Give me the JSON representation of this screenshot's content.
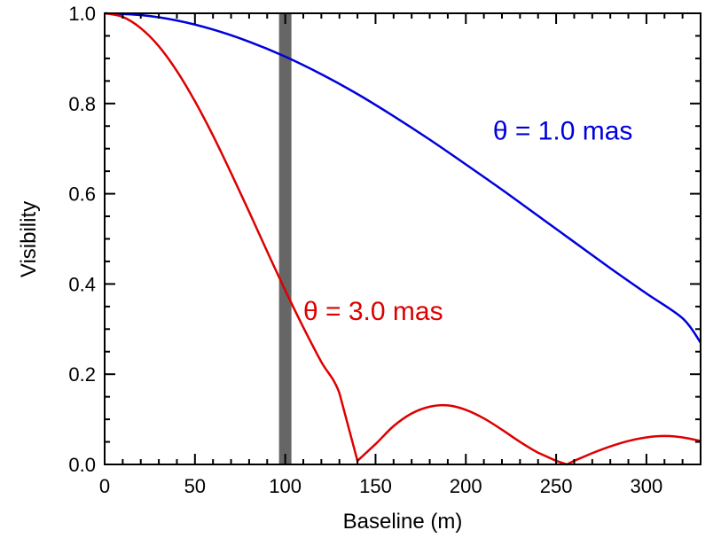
{
  "chart_data": {
    "type": "line",
    "xlabel": "Baseline (m)",
    "ylabel": "Visibility",
    "xlim": [
      0,
      330
    ],
    "ylim": [
      0,
      1.0
    ],
    "xticks": [
      0,
      50,
      100,
      150,
      200,
      250,
      300
    ],
    "xtick_labels": [
      "0",
      "50",
      "100",
      "150",
      "200",
      "250",
      "300"
    ],
    "yticks": [
      0.0,
      0.2,
      0.4,
      0.6,
      0.8,
      1.0
    ],
    "ytick_labels": [
      "0.0",
      "0.2",
      "0.4",
      "0.6",
      "0.8",
      "1.0"
    ],
    "grid": false,
    "marker_band": {
      "x": 100,
      "color": "#666666"
    },
    "series": [
      {
        "name": "θ = 1.0 mas",
        "color": "#0000dd",
        "x": [
          0,
          20,
          40,
          60,
          80,
          100,
          120,
          140,
          160,
          180,
          200,
          220,
          240,
          260,
          280,
          300,
          320,
          330
        ],
        "y": [
          1.0,
          0.996,
          0.984,
          0.964,
          0.937,
          0.904,
          0.865,
          0.821,
          0.772,
          0.72,
          0.665,
          0.609,
          0.551,
          0.493,
          0.435,
          0.379,
          0.324,
          0.27
        ]
      },
      {
        "name": "θ = 3.0 mas",
        "color": "#dd0000",
        "x": [
          0,
          10,
          20,
          30,
          40,
          50,
          60,
          70,
          80,
          90,
          100,
          110,
          120,
          130,
          140,
          150,
          160,
          170,
          180,
          190,
          200,
          210,
          220,
          230,
          240,
          250,
          256,
          260,
          270,
          280,
          290,
          300,
          310,
          320,
          330
        ],
        "y": [
          1.0,
          0.992,
          0.967,
          0.927,
          0.872,
          0.805,
          0.729,
          0.646,
          0.56,
          0.472,
          0.386,
          0.304,
          0.227,
          0.158,
          0.008,
          0.045,
          0.085,
          0.113,
          0.128,
          0.131,
          0.121,
          0.102,
          0.077,
          0.05,
          0.026,
          0.008,
          0.0,
          0.008,
          0.025,
          0.04,
          0.052,
          0.06,
          0.063,
          0.06,
          0.052
        ]
      }
    ],
    "annotations": [
      {
        "text": "θ = 1.0 mas",
        "x": 215,
        "y": 0.72,
        "color": "#0000dd"
      },
      {
        "text": "θ = 3.0 mas",
        "x": 110,
        "y": 0.32,
        "color": "#dd0000"
      }
    ]
  }
}
